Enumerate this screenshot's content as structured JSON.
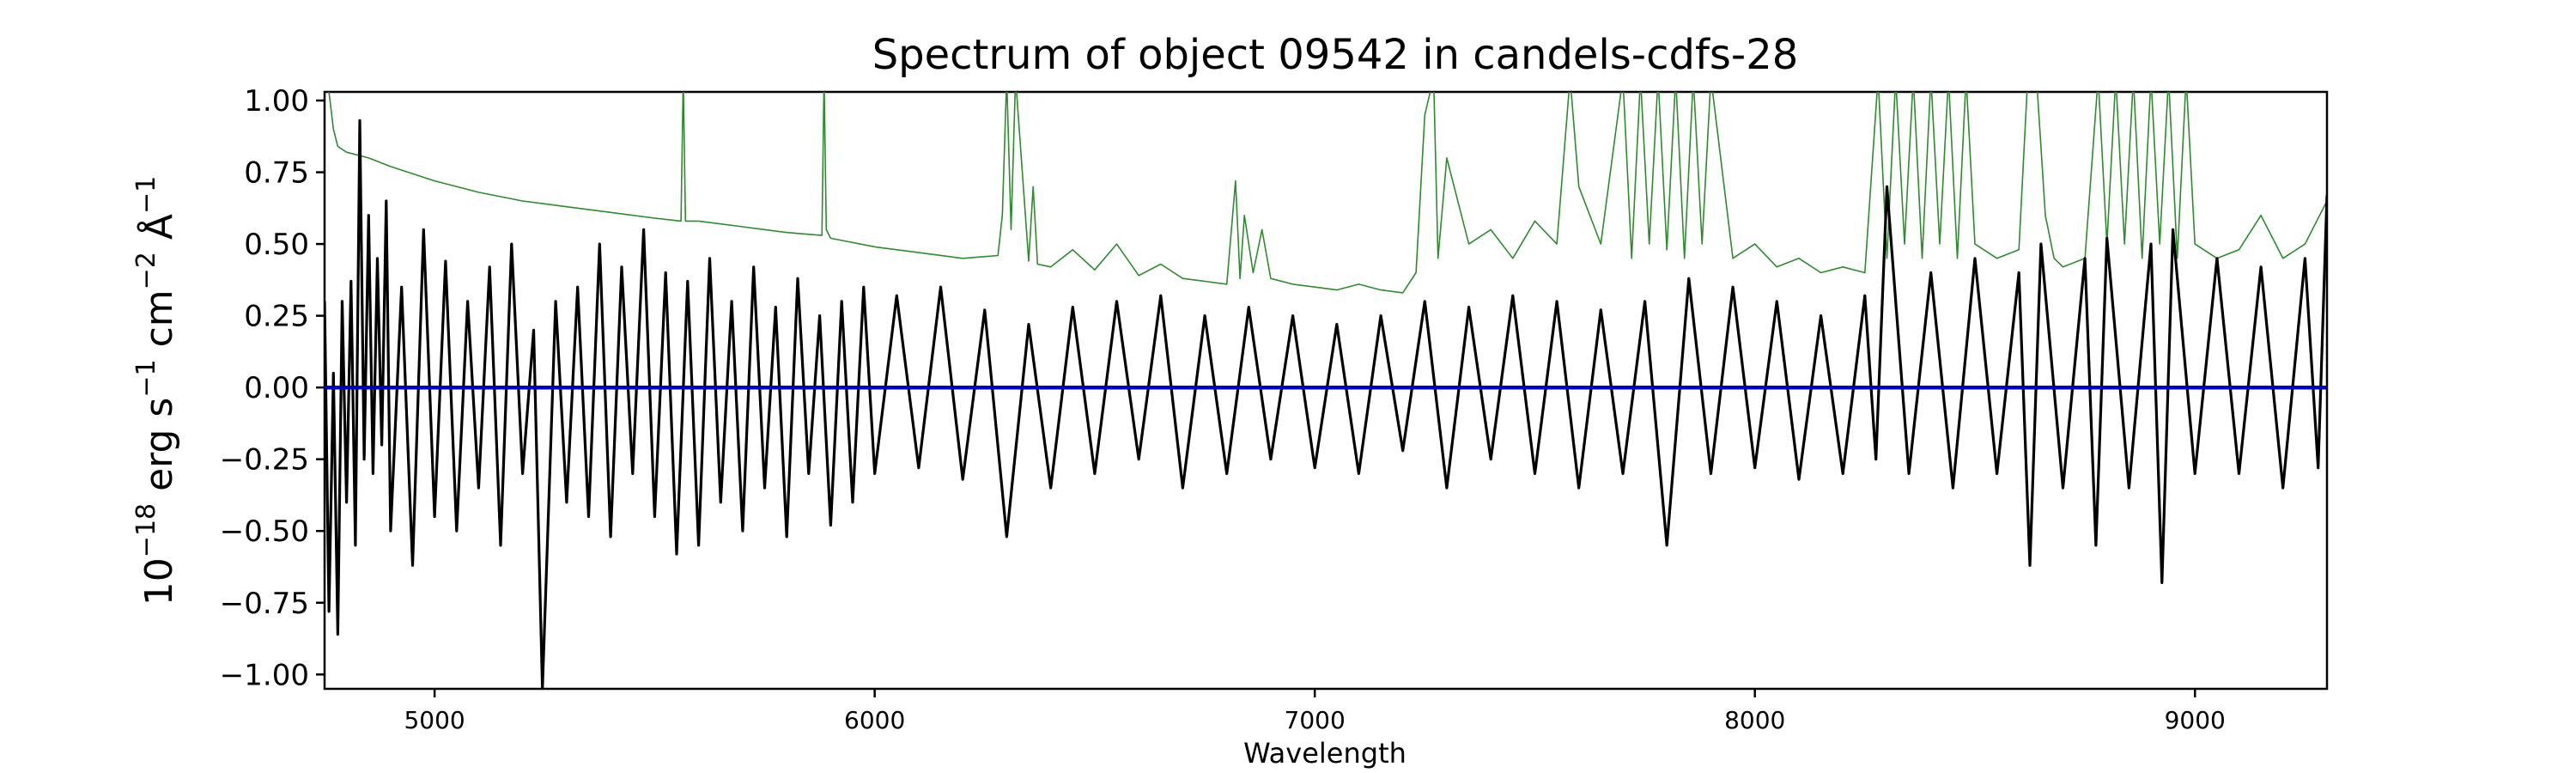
{
  "chart_data": {
    "type": "line",
    "title": "Spectrum of object 09542 in candels-cdfs-28",
    "xlabel": "Wavelength",
    "ylabel": {
      "base": "10",
      "exp": "−18",
      "pre_s": " erg s",
      "s_exp": "−1",
      "pre_cm": " cm",
      "cm_exp": "−2",
      "unit": " Å",
      "unit_exp": "−1"
    },
    "xlim": [
      4750,
      9300
    ],
    "ylim": [
      -1.05,
      1.03
    ],
    "xticks": [
      "5000",
      "6000",
      "7000",
      "8000",
      "9000"
    ],
    "yticks": [
      "1.00",
      "0.75",
      "0.50",
      "0.25",
      "0.00",
      "−0.25",
      "−0.50",
      "−0.75",
      "−1.00"
    ],
    "grid": false,
    "legend": "none",
    "series": [
      {
        "role": "flux",
        "color": "#000000",
        "x": [
          4750,
          4760,
          4770,
          4780,
          4790,
          4800,
          4810,
          4820,
          4830,
          4840,
          4850,
          4860,
          4870,
          4880,
          4890,
          4900,
          4925,
          4950,
          4975,
          5000,
          5025,
          5050,
          5075,
          5100,
          5125,
          5150,
          5175,
          5200,
          5225,
          5245,
          5275,
          5300,
          5325,
          5350,
          5375,
          5400,
          5425,
          5450,
          5475,
          5500,
          5525,
          5550,
          5575,
          5600,
          5625,
          5650,
          5675,
          5700,
          5725,
          5750,
          5775,
          5800,
          5825,
          5850,
          5875,
          5900,
          5925,
          5950,
          5975,
          6000,
          6050,
          6100,
          6150,
          6200,
          6250,
          6300,
          6350,
          6400,
          6450,
          6500,
          6550,
          6600,
          6650,
          6700,
          6750,
          6800,
          6850,
          6900,
          6950,
          7000,
          7050,
          7100,
          7150,
          7200,
          7250,
          7300,
          7350,
          7400,
          7450,
          7500,
          7550,
          7600,
          7650,
          7700,
          7750,
          7800,
          7850,
          7900,
          7950,
          8000,
          8050,
          8100,
          8150,
          8200,
          8250,
          8275,
          8300,
          8350,
          8400,
          8450,
          8500,
          8550,
          8600,
          8625,
          8650,
          8700,
          8750,
          8775,
          8800,
          8850,
          8900,
          8925,
          8950,
          9000,
          9050,
          9100,
          9150,
          9200,
          9250,
          9280,
          9300
        ],
        "y": [
          0.3,
          -0.78,
          0.05,
          -0.86,
          0.3,
          -0.4,
          0.37,
          -0.55,
          0.93,
          -0.25,
          0.6,
          -0.3,
          0.45,
          -0.2,
          0.65,
          -0.5,
          0.35,
          -0.62,
          0.55,
          -0.45,
          0.44,
          -0.5,
          0.3,
          -0.35,
          0.42,
          -0.55,
          0.5,
          -0.3,
          0.2,
          -1.05,
          0.3,
          -0.4,
          0.35,
          -0.45,
          0.5,
          -0.52,
          0.42,
          -0.3,
          0.55,
          -0.45,
          0.4,
          -0.58,
          0.37,
          -0.55,
          0.45,
          -0.4,
          0.3,
          -0.5,
          0.42,
          -0.35,
          0.28,
          -0.52,
          0.38,
          -0.3,
          0.25,
          -0.48,
          0.3,
          -0.4,
          0.35,
          -0.3,
          0.32,
          -0.28,
          0.35,
          -0.32,
          0.27,
          -0.52,
          0.22,
          -0.35,
          0.28,
          -0.3,
          0.3,
          -0.25,
          0.32,
          -0.35,
          0.25,
          -0.3,
          0.28,
          -0.25,
          0.25,
          -0.28,
          0.22,
          -0.3,
          0.25,
          -0.22,
          0.3,
          -0.35,
          0.28,
          -0.25,
          0.32,
          -0.3,
          0.3,
          -0.35,
          0.27,
          -0.3,
          0.3,
          -0.55,
          0.38,
          -0.3,
          0.35,
          -0.28,
          0.3,
          -0.32,
          0.25,
          -0.3,
          0.32,
          -0.25,
          0.7,
          -0.3,
          0.4,
          -0.35,
          0.45,
          -0.3,
          0.4,
          -0.62,
          0.5,
          -0.35,
          0.45,
          -0.55,
          0.52,
          -0.35,
          0.5,
          -0.68,
          0.55,
          -0.3,
          0.45,
          -0.3,
          0.42,
          -0.35,
          0.45,
          -0.28,
          0.67
        ]
      },
      {
        "role": "error",
        "color": "#2e8b2e",
        "x": [
          4750,
          4760,
          4770,
          4780,
          4800,
          4850,
          4900,
          5000,
          5100,
          5200,
          5300,
          5400,
          5500,
          5560,
          5565,
          5570,
          5600,
          5700,
          5800,
          5880,
          5885,
          5890,
          5900,
          6000,
          6100,
          6200,
          6280,
          6290,
          6300,
          6310,
          6320,
          6350,
          6360,
          6370,
          6400,
          6450,
          6500,
          6550,
          6600,
          6650,
          6700,
          6750,
          6800,
          6820,
          6830,
          6840,
          6860,
          6880,
          6900,
          6950,
          7000,
          7050,
          7100,
          7150,
          7200,
          7230,
          7250,
          7270,
          7280,
          7300,
          7350,
          7400,
          7450,
          7500,
          7550,
          7580,
          7600,
          7650,
          7700,
          7720,
          7740,
          7760,
          7780,
          7800,
          7820,
          7840,
          7860,
          7880,
          7900,
          7950,
          8000,
          8050,
          8100,
          8150,
          8200,
          8250,
          8280,
          8300,
          8320,
          8340,
          8360,
          8380,
          8400,
          8420,
          8440,
          8460,
          8480,
          8500,
          8550,
          8600,
          8620,
          8640,
          8660,
          8680,
          8700,
          8750,
          8780,
          8800,
          8820,
          8840,
          8860,
          8880,
          8900,
          8920,
          8940,
          8960,
          8980,
          9000,
          9050,
          9100,
          9150,
          9200,
          9250,
          9300
        ],
        "y": [
          1.1,
          1.03,
          0.9,
          0.84,
          0.82,
          0.8,
          0.77,
          0.72,
          0.68,
          0.65,
          0.63,
          0.61,
          0.59,
          0.58,
          1.08,
          0.58,
          0.58,
          0.56,
          0.54,
          0.53,
          1.08,
          0.55,
          0.52,
          0.49,
          0.47,
          0.45,
          0.46,
          0.6,
          1.08,
          0.55,
          1.08,
          0.44,
          0.7,
          0.43,
          0.42,
          0.48,
          0.41,
          0.5,
          0.39,
          0.43,
          0.38,
          0.37,
          0.36,
          0.72,
          0.38,
          0.6,
          0.4,
          0.55,
          0.38,
          0.36,
          0.35,
          0.34,
          0.36,
          0.34,
          0.33,
          0.4,
          0.95,
          1.08,
          0.45,
          0.8,
          0.5,
          0.55,
          0.45,
          0.58,
          0.5,
          1.08,
          0.7,
          0.5,
          1.08,
          0.45,
          1.08,
          0.5,
          1.08,
          0.48,
          1.08,
          0.45,
          1.08,
          0.5,
          1.08,
          0.45,
          0.5,
          0.42,
          0.45,
          0.4,
          0.42,
          0.4,
          1.08,
          0.45,
          1.08,
          0.5,
          1.08,
          0.45,
          1.08,
          0.5,
          1.08,
          0.45,
          1.08,
          0.5,
          0.45,
          0.48,
          1.08,
          1.08,
          0.6,
          0.45,
          0.42,
          0.45,
          1.08,
          0.5,
          1.08,
          0.5,
          1.08,
          0.45,
          1.08,
          0.5,
          1.08,
          0.45,
          1.08,
          0.5,
          0.45,
          0.48,
          0.6,
          0.45,
          0.5,
          0.65
        ]
      },
      {
        "role": "model",
        "color": "#0000bb",
        "x": [
          4750,
          9300
        ],
        "y": [
          0.0,
          0.0
        ]
      }
    ]
  }
}
